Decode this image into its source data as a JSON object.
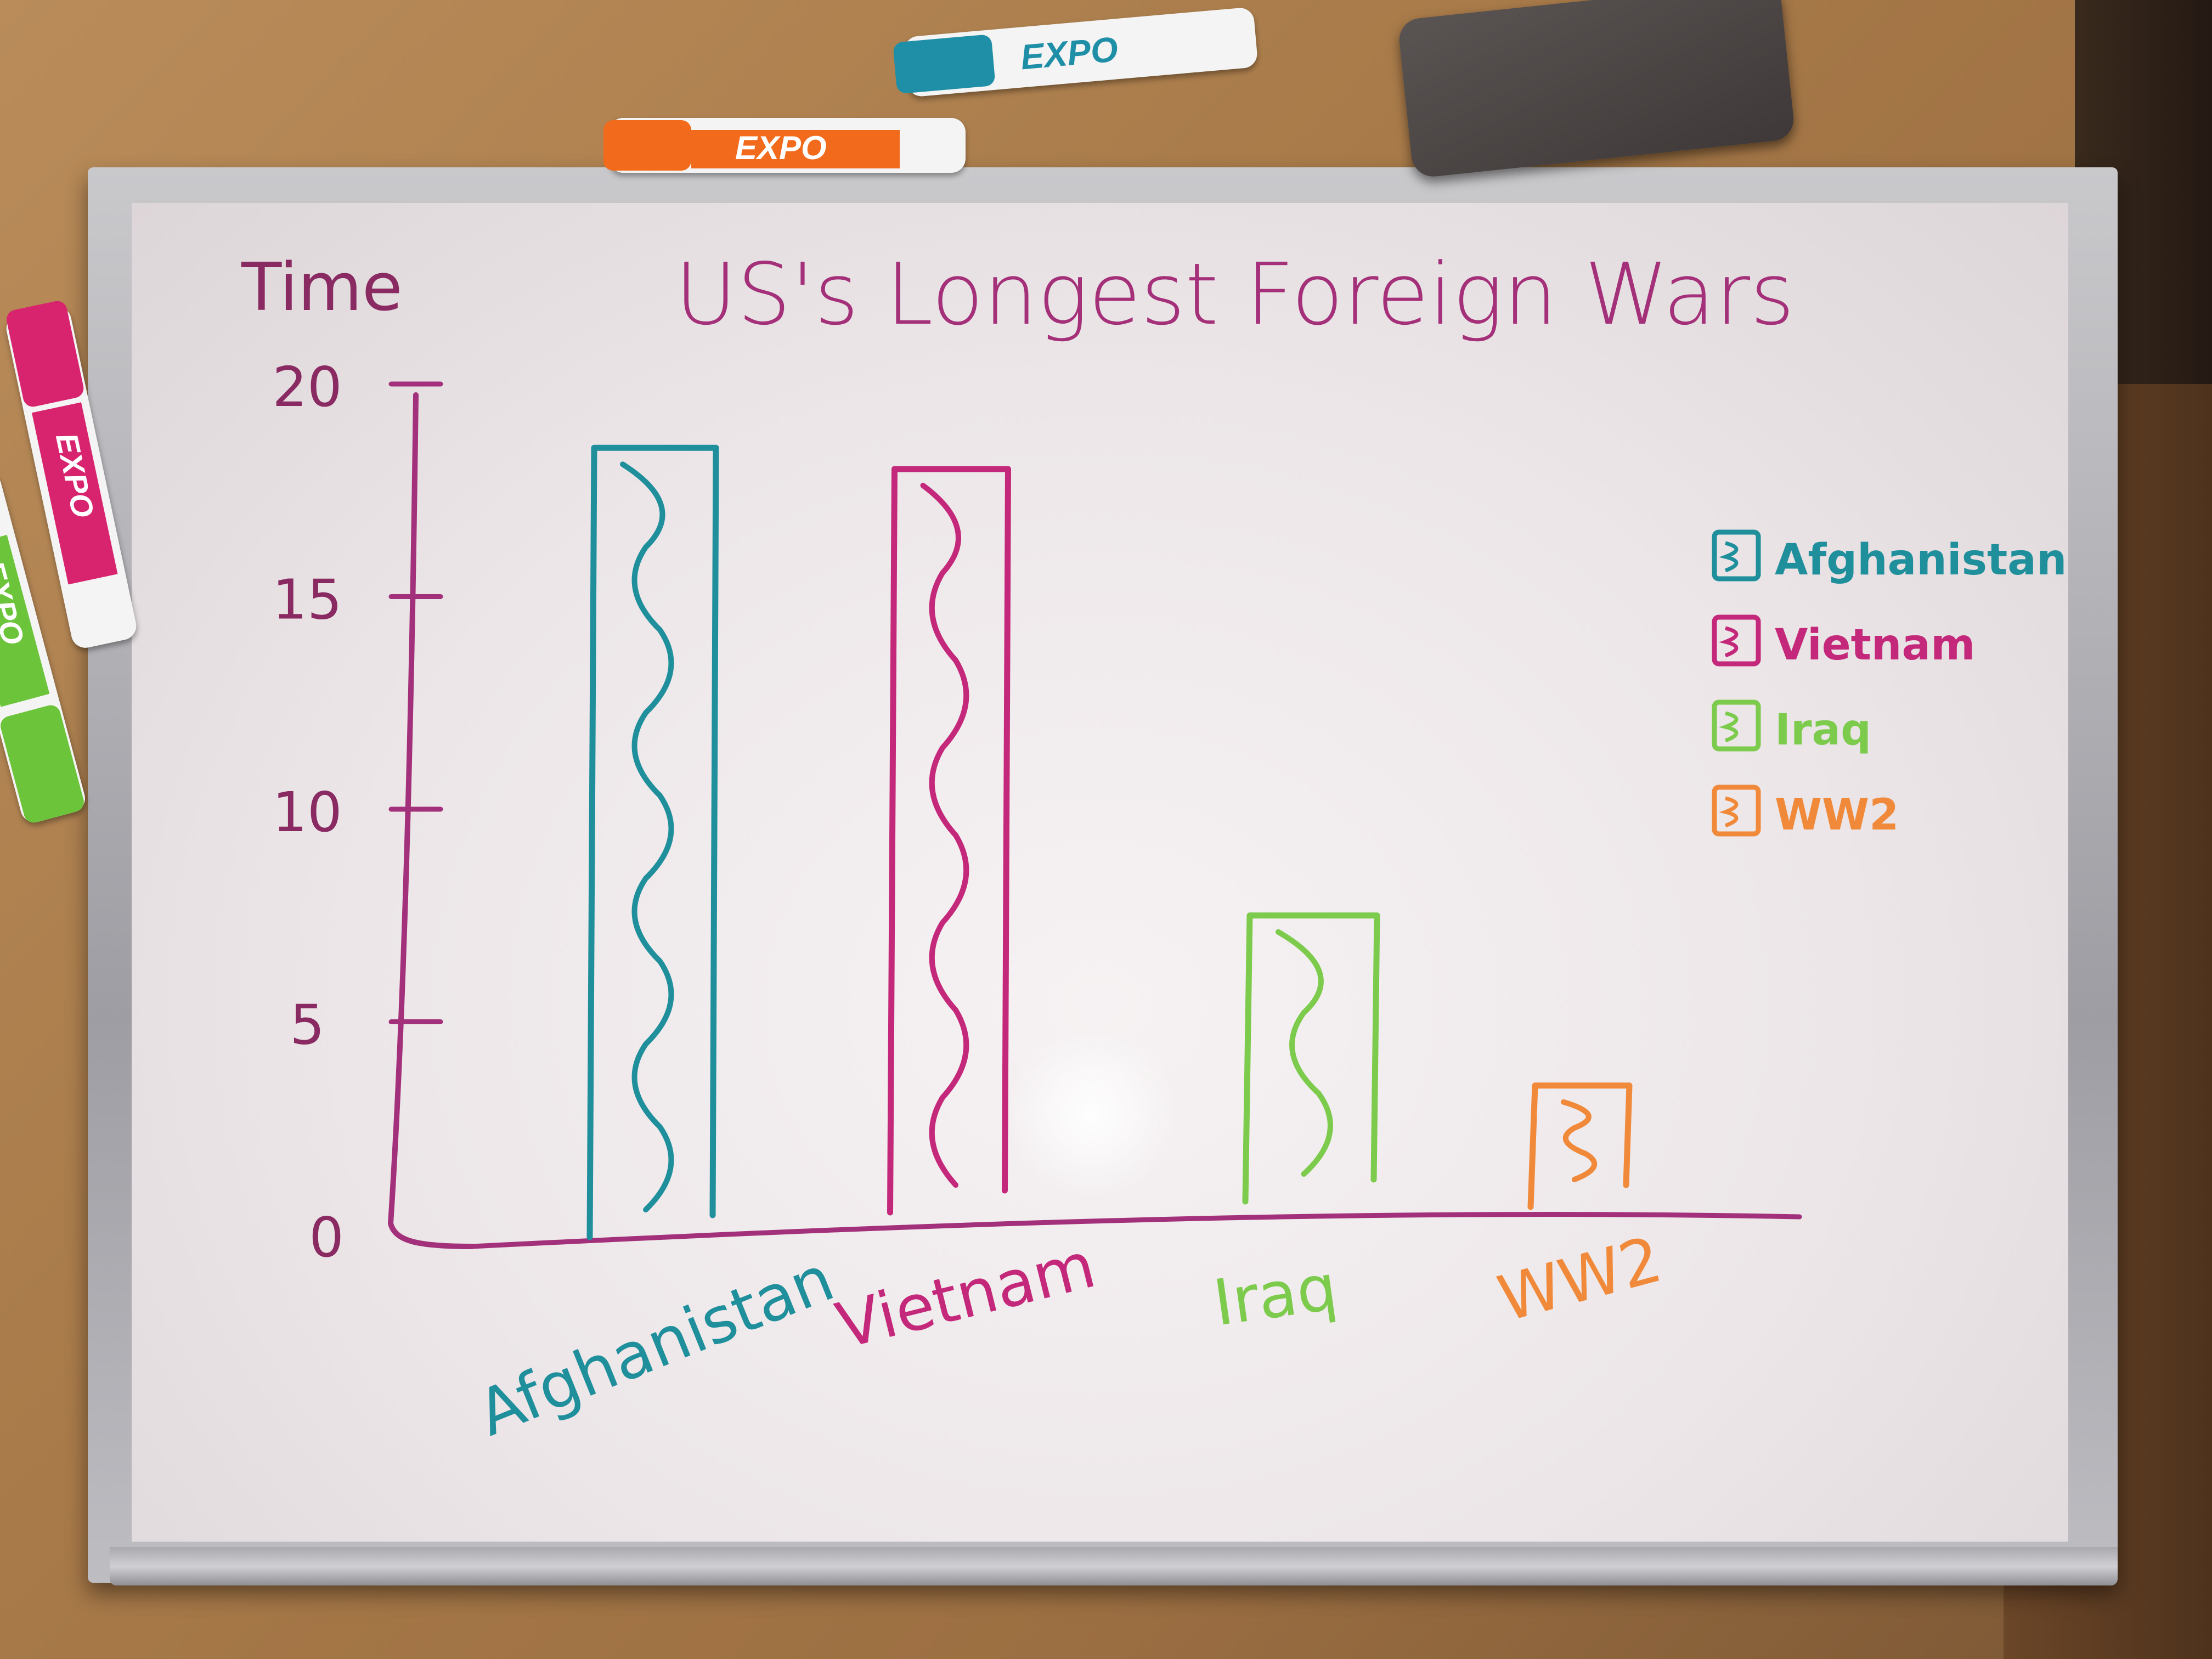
{
  "chart_data": {
    "type": "bar",
    "title": "US's Longest Foreign Wars",
    "ylabel": "Time",
    "xlabel": "",
    "ylim": [
      0,
      20
    ],
    "yticks": [
      0,
      5,
      10,
      15,
      20
    ],
    "categories": [
      "Afghanistan",
      "Vietnam",
      "Iraq",
      "WW2"
    ],
    "values": [
      18.5,
      18,
      7.5,
      3.5
    ],
    "colors": [
      "#1f8f9c",
      "#c4287a",
      "#7ccb4c",
      "#f08a3a"
    ],
    "legend": {
      "position": "right",
      "entries": [
        "Afghanistan",
        "Vietnam",
        "Iraq",
        "WW2"
      ]
    },
    "grid": false
  },
  "props": {
    "markers": [
      {
        "name": "teal-marker",
        "brand": "EXPO",
        "color": "#1f8fa8"
      },
      {
        "name": "orange-marker",
        "brand": "EXPO",
        "color": "#f26a1b"
      },
      {
        "name": "magenta-marker",
        "brand": "EXPO",
        "color": "#d8246e"
      },
      {
        "name": "green-marker",
        "brand": "EXPO",
        "color": "#6cc43a"
      }
    ]
  }
}
